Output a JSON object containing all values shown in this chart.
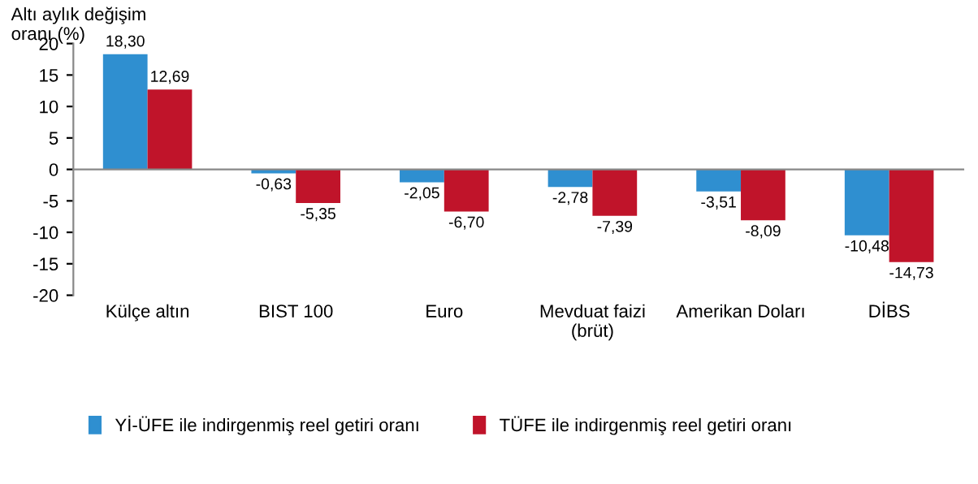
{
  "chart_data": {
    "type": "bar",
    "ylabel": "Altı aylık değişim\noranı (%)",
    "categories": [
      "Külçe altın",
      "BIST 100",
      "Euro",
      "Mevduat faizi\n(brüt)",
      "Amerikan Doları",
      "DİBS"
    ],
    "series": [
      {
        "name": "Yİ-ÜFE ile indirgenmiş reel getiri oranı",
        "color": "#2f8fd0",
        "values": [
          18.3,
          -0.63,
          -2.05,
          -2.78,
          -3.51,
          -10.48
        ],
        "value_labels": [
          "18,30",
          "-0,63",
          "-2,05",
          "-2,78",
          "-3,51",
          "-10,48"
        ]
      },
      {
        "name": "TÜFE ile indirgenmiş reel getiri oranı",
        "color": "#c0142a",
        "values": [
          12.69,
          -5.35,
          -6.7,
          -7.39,
          -8.09,
          -14.73
        ],
        "value_labels": [
          "12,69",
          "-5,35",
          "-6,70",
          "-7,39",
          "-8,09",
          "-14,73"
        ]
      }
    ],
    "ylim": [
      -20,
      20
    ],
    "yticks": [
      -20,
      -15,
      -10,
      -5,
      0,
      5,
      10,
      15,
      20
    ],
    "legend": "bottom left"
  }
}
